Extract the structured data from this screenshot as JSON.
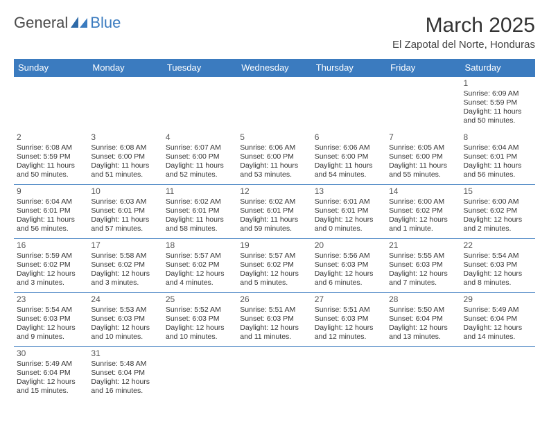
{
  "logo": {
    "text1": "General",
    "text2": "Blue"
  },
  "title": "March 2025",
  "subtitle": "El Zapotal del Norte, Honduras",
  "colors": {
    "header_bg": "#3b7bbf",
    "header_text": "#ffffff",
    "border": "#3b7bbf",
    "text": "#333333",
    "background": "#ffffff"
  },
  "calendar": {
    "type": "table",
    "days_of_week": [
      "Sunday",
      "Monday",
      "Tuesday",
      "Wednesday",
      "Thursday",
      "Friday",
      "Saturday"
    ],
    "first_weekday_index": 6,
    "num_days": 31,
    "cells": {
      "1": {
        "sunrise": "6:09 AM",
        "sunset": "5:59 PM",
        "daylight": "11 hours and 50 minutes."
      },
      "2": {
        "sunrise": "6:08 AM",
        "sunset": "5:59 PM",
        "daylight": "11 hours and 50 minutes."
      },
      "3": {
        "sunrise": "6:08 AM",
        "sunset": "6:00 PM",
        "daylight": "11 hours and 51 minutes."
      },
      "4": {
        "sunrise": "6:07 AM",
        "sunset": "6:00 PM",
        "daylight": "11 hours and 52 minutes."
      },
      "5": {
        "sunrise": "6:06 AM",
        "sunset": "6:00 PM",
        "daylight": "11 hours and 53 minutes."
      },
      "6": {
        "sunrise": "6:06 AM",
        "sunset": "6:00 PM",
        "daylight": "11 hours and 54 minutes."
      },
      "7": {
        "sunrise": "6:05 AM",
        "sunset": "6:00 PM",
        "daylight": "11 hours and 55 minutes."
      },
      "8": {
        "sunrise": "6:04 AM",
        "sunset": "6:01 PM",
        "daylight": "11 hours and 56 minutes."
      },
      "9": {
        "sunrise": "6:04 AM",
        "sunset": "6:01 PM",
        "daylight": "11 hours and 56 minutes."
      },
      "10": {
        "sunrise": "6:03 AM",
        "sunset": "6:01 PM",
        "daylight": "11 hours and 57 minutes."
      },
      "11": {
        "sunrise": "6:02 AM",
        "sunset": "6:01 PM",
        "daylight": "11 hours and 58 minutes."
      },
      "12": {
        "sunrise": "6:02 AM",
        "sunset": "6:01 PM",
        "daylight": "11 hours and 59 minutes."
      },
      "13": {
        "sunrise": "6:01 AM",
        "sunset": "6:01 PM",
        "daylight": "12 hours and 0 minutes."
      },
      "14": {
        "sunrise": "6:00 AM",
        "sunset": "6:02 PM",
        "daylight": "12 hours and 1 minute."
      },
      "15": {
        "sunrise": "6:00 AM",
        "sunset": "6:02 PM",
        "daylight": "12 hours and 2 minutes."
      },
      "16": {
        "sunrise": "5:59 AM",
        "sunset": "6:02 PM",
        "daylight": "12 hours and 3 minutes."
      },
      "17": {
        "sunrise": "5:58 AM",
        "sunset": "6:02 PM",
        "daylight": "12 hours and 3 minutes."
      },
      "18": {
        "sunrise": "5:57 AM",
        "sunset": "6:02 PM",
        "daylight": "12 hours and 4 minutes."
      },
      "19": {
        "sunrise": "5:57 AM",
        "sunset": "6:02 PM",
        "daylight": "12 hours and 5 minutes."
      },
      "20": {
        "sunrise": "5:56 AM",
        "sunset": "6:03 PM",
        "daylight": "12 hours and 6 minutes."
      },
      "21": {
        "sunrise": "5:55 AM",
        "sunset": "6:03 PM",
        "daylight": "12 hours and 7 minutes."
      },
      "22": {
        "sunrise": "5:54 AM",
        "sunset": "6:03 PM",
        "daylight": "12 hours and 8 minutes."
      },
      "23": {
        "sunrise": "5:54 AM",
        "sunset": "6:03 PM",
        "daylight": "12 hours and 9 minutes."
      },
      "24": {
        "sunrise": "5:53 AM",
        "sunset": "6:03 PM",
        "daylight": "12 hours and 10 minutes."
      },
      "25": {
        "sunrise": "5:52 AM",
        "sunset": "6:03 PM",
        "daylight": "12 hours and 10 minutes."
      },
      "26": {
        "sunrise": "5:51 AM",
        "sunset": "6:03 PM",
        "daylight": "12 hours and 11 minutes."
      },
      "27": {
        "sunrise": "5:51 AM",
        "sunset": "6:03 PM",
        "daylight": "12 hours and 12 minutes."
      },
      "28": {
        "sunrise": "5:50 AM",
        "sunset": "6:04 PM",
        "daylight": "12 hours and 13 minutes."
      },
      "29": {
        "sunrise": "5:49 AM",
        "sunset": "6:04 PM",
        "daylight": "12 hours and 14 minutes."
      },
      "30": {
        "sunrise": "5:49 AM",
        "sunset": "6:04 PM",
        "daylight": "12 hours and 15 minutes."
      },
      "31": {
        "sunrise": "5:48 AM",
        "sunset": "6:04 PM",
        "daylight": "12 hours and 16 minutes."
      }
    },
    "labels": {
      "sunrise_prefix": "Sunrise: ",
      "sunset_prefix": "Sunset: ",
      "daylight_prefix": "Daylight: "
    }
  }
}
